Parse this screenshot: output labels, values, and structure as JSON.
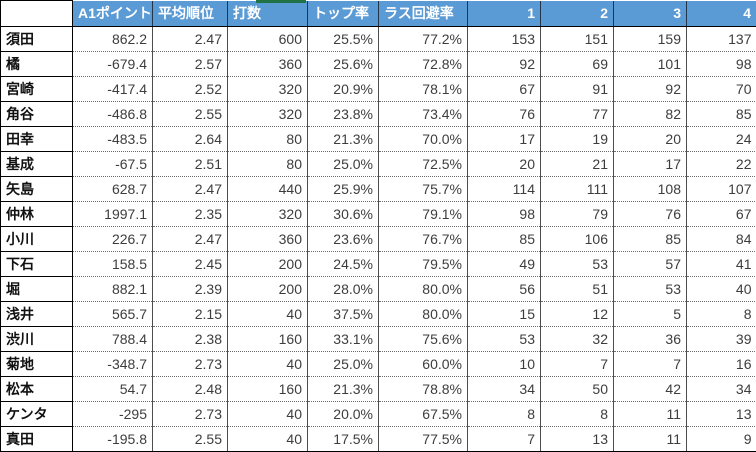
{
  "table": {
    "columns": [
      "",
      "A1ポイント",
      "平均順位",
      "打数",
      "トップ率",
      "ラス回避率",
      "1",
      "2",
      "3",
      "4"
    ],
    "rows": [
      {
        "name": "須田",
        "values": [
          "862.2",
          "2.47",
          "600",
          "25.5%",
          "77.2%",
          "153",
          "151",
          "159",
          "137"
        ]
      },
      {
        "name": "橘",
        "values": [
          "-679.4",
          "2.57",
          "360",
          "25.6%",
          "72.8%",
          "92",
          "69",
          "101",
          "98"
        ]
      },
      {
        "name": "宮崎",
        "values": [
          "-417.4",
          "2.52",
          "320",
          "20.9%",
          "78.1%",
          "67",
          "91",
          "92",
          "70"
        ]
      },
      {
        "name": "角谷",
        "values": [
          "-486.8",
          "2.55",
          "320",
          "23.8%",
          "73.4%",
          "76",
          "77",
          "82",
          "85"
        ]
      },
      {
        "name": "田幸",
        "values": [
          "-483.5",
          "2.64",
          "80",
          "21.3%",
          "70.0%",
          "17",
          "19",
          "20",
          "24"
        ]
      },
      {
        "name": "基成",
        "values": [
          "-67.5",
          "2.51",
          "80",
          "25.0%",
          "72.5%",
          "20",
          "21",
          "17",
          "22"
        ]
      },
      {
        "name": "矢島",
        "values": [
          "628.7",
          "2.47",
          "440",
          "25.9%",
          "75.7%",
          "114",
          "111",
          "108",
          "107"
        ]
      },
      {
        "name": "仲林",
        "values": [
          "1997.1",
          "2.35",
          "320",
          "30.6%",
          "79.1%",
          "98",
          "79",
          "76",
          "67"
        ]
      },
      {
        "name": "小川",
        "values": [
          "226.7",
          "2.47",
          "360",
          "23.6%",
          "76.7%",
          "85",
          "106",
          "85",
          "84"
        ]
      },
      {
        "name": "下石",
        "values": [
          "158.5",
          "2.45",
          "200",
          "24.5%",
          "79.5%",
          "49",
          "53",
          "57",
          "41"
        ]
      },
      {
        "name": "堀",
        "values": [
          "882.1",
          "2.39",
          "200",
          "28.0%",
          "80.0%",
          "56",
          "51",
          "53",
          "40"
        ]
      },
      {
        "name": "浅井",
        "values": [
          "565.7",
          "2.15",
          "40",
          "37.5%",
          "80.0%",
          "15",
          "12",
          "5",
          "8"
        ]
      },
      {
        "name": "渋川",
        "values": [
          "788.4",
          "2.38",
          "160",
          "33.1%",
          "75.6%",
          "53",
          "32",
          "36",
          "39"
        ]
      },
      {
        "name": "菊地",
        "values": [
          "-348.7",
          "2.73",
          "40",
          "25.0%",
          "60.0%",
          "10",
          "7",
          "7",
          "16"
        ]
      },
      {
        "name": "松本",
        "values": [
          "54.7",
          "2.48",
          "160",
          "21.3%",
          "78.8%",
          "34",
          "50",
          "42",
          "34"
        ]
      },
      {
        "name": "ケンタ",
        "values": [
          "-295",
          "2.73",
          "40",
          "20.0%",
          "67.5%",
          "8",
          "8",
          "11",
          "13"
        ]
      },
      {
        "name": "真田",
        "values": [
          "-195.8",
          "2.55",
          "40",
          "17.5%",
          "77.5%",
          "7",
          "13",
          "11",
          "9"
        ]
      }
    ]
  },
  "colors": {
    "header_bg": "#5B9BD5",
    "header_text": "#FFFFFF",
    "selection_green": "#217346"
  }
}
